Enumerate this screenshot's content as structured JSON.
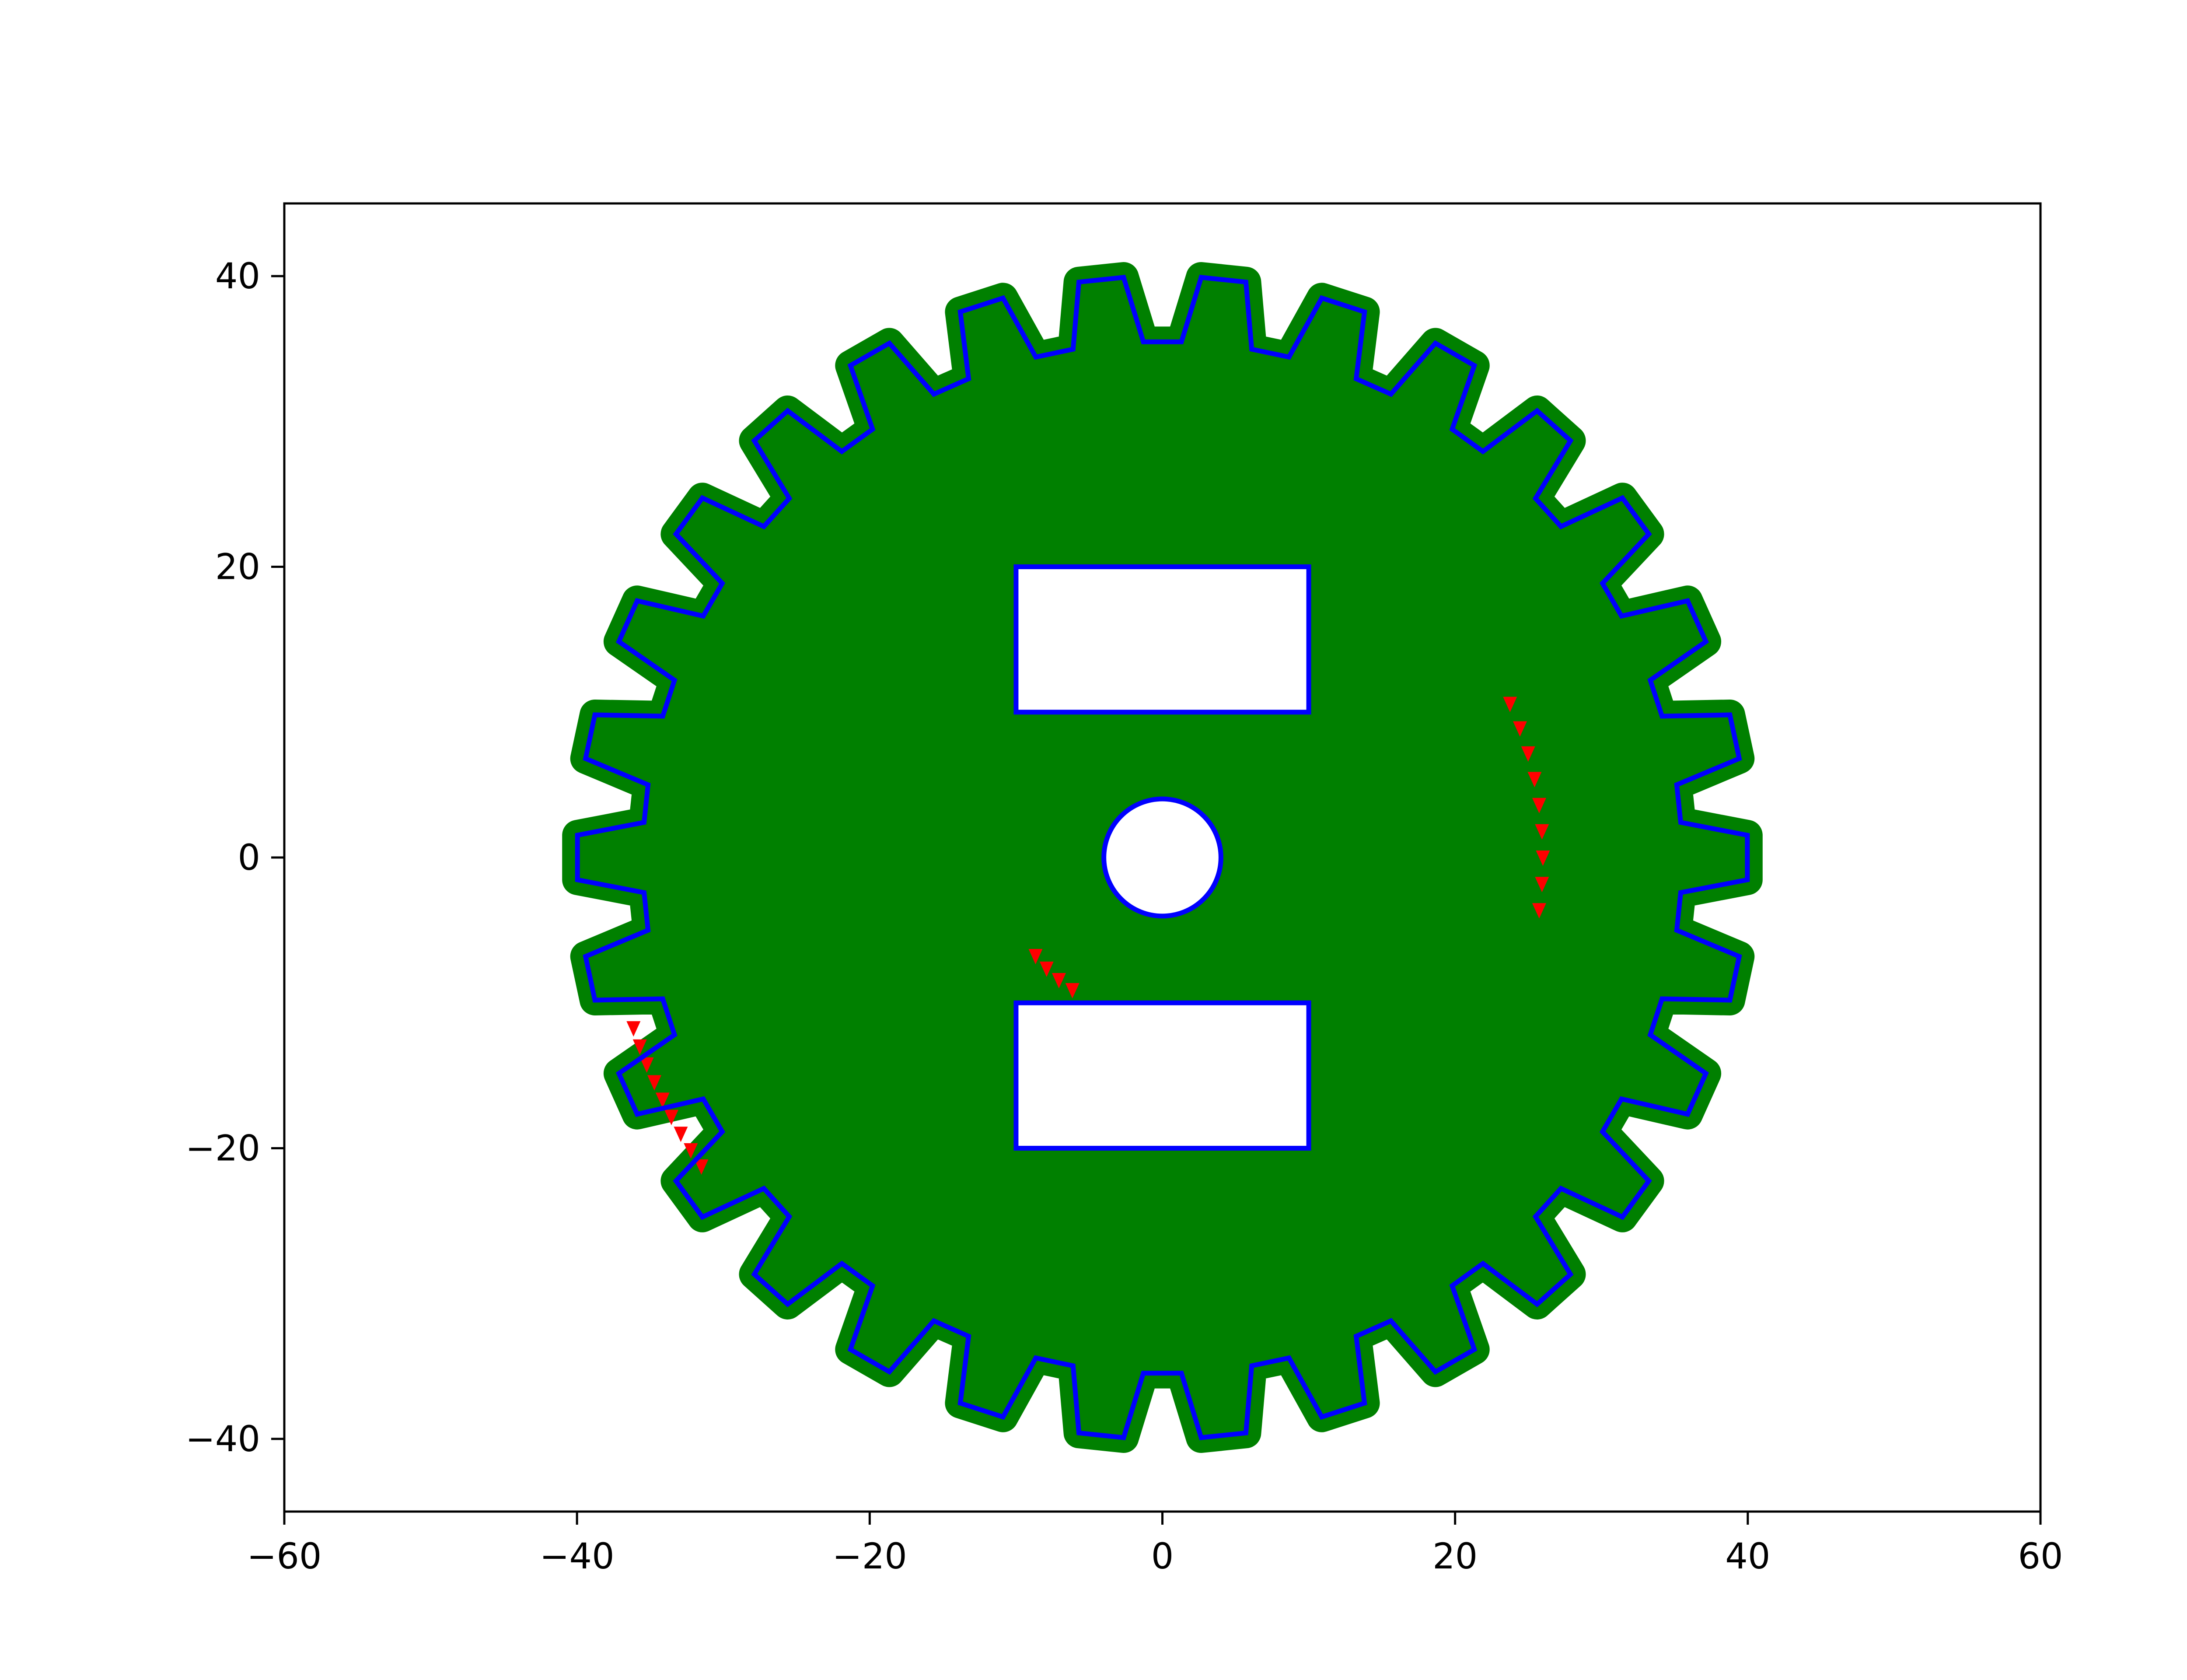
{
  "chart_data": {
    "type": "line",
    "title": "",
    "xlabel": "",
    "ylabel": "",
    "xlim": [
      -60,
      60
    ],
    "ylim": [
      -45,
      45
    ],
    "aspect": "equal",
    "grid": false,
    "legend": "none",
    "x_ticks": [
      -60,
      -40,
      -20,
      0,
      20,
      40,
      60
    ],
    "x_tick_labels": [
      "−60",
      "−40",
      "−20",
      "0",
      "20",
      "40",
      "60"
    ],
    "y_ticks": [
      -40,
      -20,
      0,
      20,
      40
    ],
    "y_tick_labels": [
      "−40",
      "−20",
      "0",
      "20",
      "40"
    ],
    "gear": {
      "teeth": 30,
      "outer_radius": 40,
      "root_radius": 35.5,
      "tooth_tip_half_width_deg": 2.2,
      "tooth_base_half_width_deg": 3.9,
      "first_tooth_angle_deg": 0
    },
    "center_hole": {
      "cx": 0,
      "cy": 0,
      "r": 4
    },
    "rect_cutouts": [
      {
        "x0": -10,
        "x1": 10,
        "y0": 10,
        "y1": 20
      },
      {
        "x0": -10,
        "x1": 10,
        "y0": -20,
        "y1": -10
      }
    ],
    "red_marker_arcs": [
      {
        "cx": 0,
        "cy": 0,
        "r": 26,
        "start_deg": 24,
        "end_deg": -8,
        "count": 9
      },
      {
        "cx": 0,
        "cy": 0,
        "r": 38,
        "start_deg": 198,
        "end_deg": 214,
        "count": 9
      },
      {
        "cx": 0,
        "cy": 0,
        "r": 11,
        "start_deg": 218,
        "end_deg": 236,
        "count": 4
      }
    ],
    "series": [
      {
        "label_key": "fill",
        "color": "#008000",
        "role": "filled gear body with round markers"
      },
      {
        "label_key": "outline",
        "color": "#0000ff",
        "role": "outline of gear, holes and cutouts"
      },
      {
        "label_key": "markers",
        "color": "#ff0000",
        "role": "triangle markers"
      }
    ]
  }
}
